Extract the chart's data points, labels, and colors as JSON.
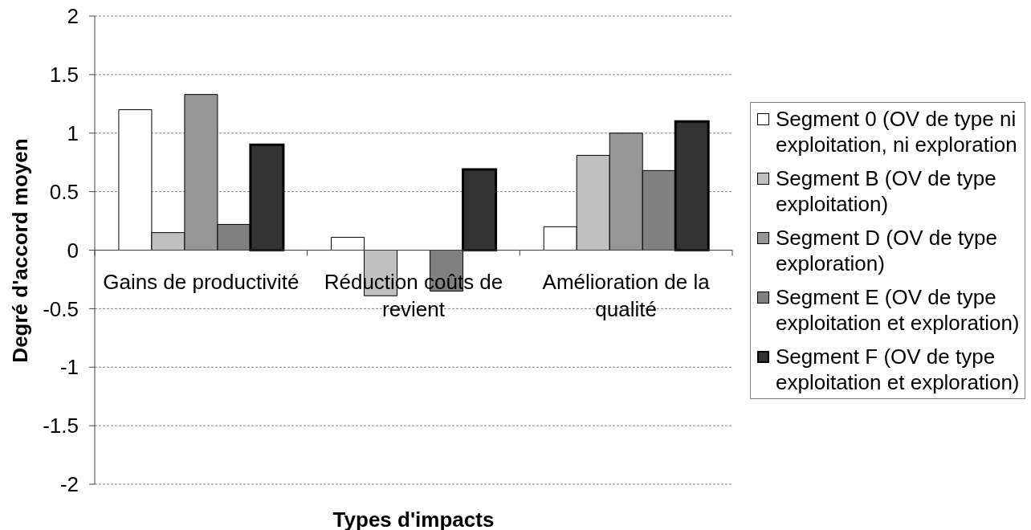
{
  "chart_data": {
    "type": "bar",
    "xlabel": "Types d'impacts",
    "ylabel": "Degré d'accord moyen",
    "categories": [
      "Gains de productivité",
      "Réduction coûts de revient",
      "Amélioration de la qualité"
    ],
    "series": [
      {
        "name": "Segment 0 (OV de type ni exploitation, ni exploration",
        "color": "#ffffff",
        "values": [
          1.2,
          0.11,
          0.2
        ]
      },
      {
        "name": "Segment B (OV de type exploitation)",
        "color": "#c0c0c0",
        "values": [
          0.15,
          -0.39,
          0.81
        ]
      },
      {
        "name": "Segment D (OV de type exploration)",
        "color": "#969696",
        "values": [
          1.33,
          null,
          1.0
        ]
      },
      {
        "name": "Segment E (OV de type exploitation et exploration)",
        "color": "#808080",
        "values": [
          0.22,
          -0.35,
          0.68
        ]
      },
      {
        "name": "Segment F (OV de type exploitation et exploration)",
        "color": "#333333",
        "values": [
          0.9,
          0.69,
          1.1
        ]
      }
    ],
    "ylim": [
      -2,
      2
    ],
    "yticks": [
      -2,
      -1.5,
      -1,
      -0.5,
      0,
      0.5,
      1,
      1.5,
      2
    ],
    "grid": "y",
    "legend": "right"
  }
}
